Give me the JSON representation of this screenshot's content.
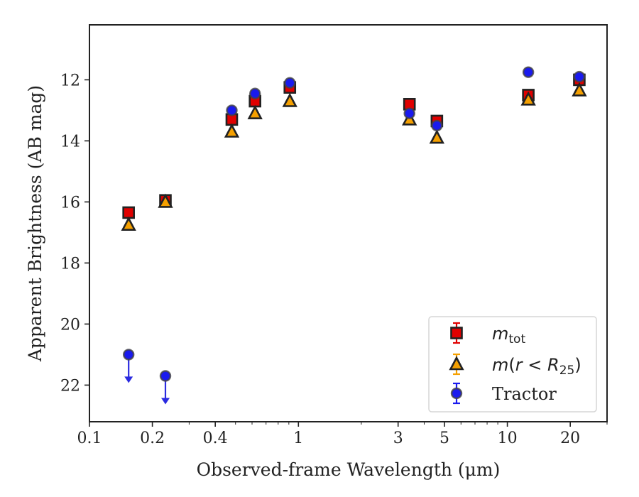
{
  "chart_data": {
    "type": "scatter",
    "title": "",
    "xlabel": "Observed-frame Wavelength (μm)",
    "ylabel": "Apparent Brightness (AB mag)",
    "x_scale": "log",
    "xlim": [
      0.1,
      30
    ],
    "ylim": [
      23.2,
      10.2
    ],
    "y_inverted": true,
    "x_ticks": [
      {
        "value": 0.1,
        "label": "0.1"
      },
      {
        "value": 0.2,
        "label": "0.2"
      },
      {
        "value": 0.4,
        "label": "0.4"
      },
      {
        "value": 1,
        "label": "1"
      },
      {
        "value": 3,
        "label": "3"
      },
      {
        "value": 5,
        "label": "5"
      },
      {
        "value": 10,
        "label": "10"
      },
      {
        "value": 20,
        "label": "20"
      }
    ],
    "y_ticks": [
      {
        "value": 12,
        "label": "12"
      },
      {
        "value": 14,
        "label": "14"
      },
      {
        "value": 16,
        "label": "16"
      },
      {
        "value": 18,
        "label": "18"
      },
      {
        "value": 20,
        "label": "20"
      },
      {
        "value": 22,
        "label": "22"
      }
    ],
    "grid": false,
    "legend_position": "lower right",
    "series": [
      {
        "name": "m_tot",
        "legend_label": "m_tot",
        "marker": "square",
        "color": "#e00000",
        "x": [
          0.154,
          0.231,
          0.48,
          0.62,
          0.91,
          3.4,
          4.6,
          12.6,
          22.1
        ],
        "y": [
          16.35,
          15.95,
          13.3,
          12.7,
          12.25,
          12.8,
          13.35,
          12.5,
          12.0
        ]
      },
      {
        "name": "m(r<R25)",
        "legend_label": "m(r < R25)",
        "marker": "triangle",
        "color": "#f5a000",
        "x": [
          0.154,
          0.231,
          0.48,
          0.62,
          0.91,
          3.4,
          4.6,
          12.6,
          22.1
        ],
        "y": [
          16.75,
          16.0,
          13.7,
          13.1,
          12.7,
          13.3,
          13.9,
          12.65,
          12.35
        ]
      },
      {
        "name": "Tractor",
        "legend_label": "Tractor",
        "marker": "circle",
        "color": "#1a1aee",
        "x": [
          0.154,
          0.231,
          0.48,
          0.62,
          0.91,
          3.4,
          4.6,
          12.6,
          22.1
        ],
        "y": [
          21.0,
          21.7,
          13.0,
          12.45,
          12.1,
          13.1,
          13.5,
          11.75,
          11.9
        ],
        "upper_limits": [
          true,
          true,
          false,
          false,
          false,
          false,
          false,
          false,
          false
        ]
      }
    ],
    "colors": {
      "axis": "#222222",
      "marker_edge": "#222222",
      "arrow": "#2a2ae0"
    }
  }
}
